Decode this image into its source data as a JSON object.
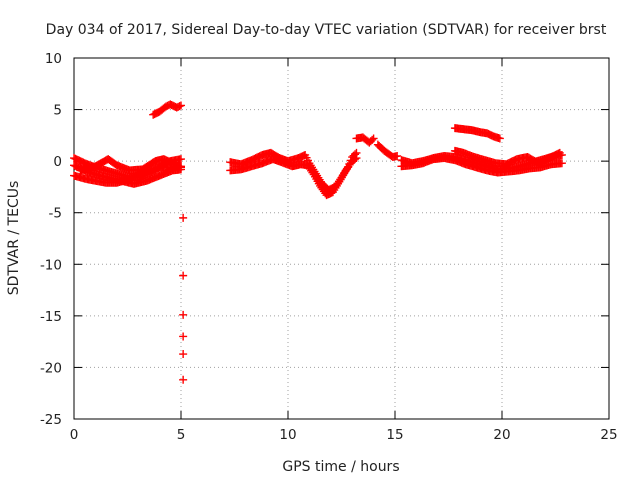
{
  "chart_data": {
    "type": "scatter",
    "title": "Day 034 of 2017, Sidereal Day-to-day VTEC variation (SDTVAR) for receiver brst",
    "xlabel": "GPS time / hours",
    "ylabel": "SDTVAR / TECUs",
    "xlim": [
      0,
      25
    ],
    "ylim": [
      -25,
      10
    ],
    "xticks": [
      "0",
      "5",
      "10",
      "15",
      "20",
      "25"
    ],
    "yticks": [
      "10",
      "5",
      "0",
      "-5",
      "-10",
      "-15",
      "-20",
      "-25"
    ],
    "grid": true,
    "marker": "+",
    "color": "#ff0000",
    "series": [
      {
        "name": "SDTVAR",
        "segments": [
          [
            [
              0.0,
              0.3
            ],
            [
              0.5,
              -0.2
            ],
            [
              1.0,
              -0.6
            ],
            [
              1.5,
              -0.9
            ],
            [
              2.0,
              -1.2
            ],
            [
              2.5,
              -1.5
            ],
            [
              3.0,
              -1.6
            ],
            [
              3.5,
              -1.2
            ],
            [
              4.0,
              -0.6
            ],
            [
              4.5,
              0.0
            ],
            [
              5.0,
              0.2
            ]
          ],
          [
            [
              0.0,
              -1.4
            ],
            [
              0.5,
              -1.7
            ],
            [
              1.0,
              -1.9
            ],
            [
              1.5,
              -2.1
            ],
            [
              2.0,
              -2.1
            ],
            [
              2.5,
              -1.8
            ],
            [
              3.0,
              -1.3
            ],
            [
              3.5,
              -0.9
            ],
            [
              4.0,
              -0.6
            ],
            [
              4.5,
              -0.6
            ],
            [
              5.0,
              -0.5
            ]
          ],
          [
            [
              0.3,
              -0.9
            ],
            [
              1.0,
              -0.5
            ],
            [
              1.6,
              0.2
            ],
            [
              2.0,
              -0.4
            ],
            [
              2.6,
              -0.9
            ],
            [
              3.2,
              -0.8
            ],
            [
              3.8,
              0.0
            ],
            [
              4.2,
              0.2
            ],
            [
              4.8,
              -0.4
            ],
            [
              5.0,
              -0.6
            ]
          ],
          [
            [
              0.0,
              -0.4
            ],
            [
              0.6,
              -1.0
            ],
            [
              1.2,
              -1.4
            ],
            [
              2.0,
              -1.8
            ],
            [
              2.8,
              -2.2
            ],
            [
              3.4,
              -1.9
            ],
            [
              4.0,
              -1.4
            ],
            [
              4.6,
              -0.9
            ],
            [
              5.0,
              -0.8
            ]
          ],
          [
            [
              3.7,
              4.5
            ],
            [
              4.0,
              4.8
            ],
            [
              4.3,
              5.3
            ],
            [
              4.5,
              5.5
            ],
            [
              4.8,
              5.2
            ],
            [
              5.0,
              5.4
            ]
          ],
          [
            [
              7.3,
              -0.1
            ],
            [
              7.8,
              -0.3
            ],
            [
              8.3,
              0.1
            ],
            [
              8.8,
              0.6
            ],
            [
              9.2,
              0.8
            ],
            [
              9.6,
              0.3
            ],
            [
              10.0,
              0.0
            ],
            [
              10.5,
              0.3
            ],
            [
              10.8,
              0.6
            ],
            [
              11.0,
              -0.2
            ],
            [
              11.3,
              -1.2
            ],
            [
              11.6,
              -2.2
            ],
            [
              11.9,
              -2.8
            ],
            [
              12.2,
              -2.5
            ],
            [
              12.5,
              -1.6
            ],
            [
              12.8,
              -0.6
            ],
            [
              13.0,
              0.4
            ],
            [
              13.2,
              0.8
            ]
          ],
          [
            [
              7.3,
              -0.9
            ],
            [
              7.8,
              -0.8
            ],
            [
              8.3,
              -0.5
            ],
            [
              8.8,
              -0.2
            ],
            [
              9.3,
              0.2
            ],
            [
              9.7,
              -0.1
            ],
            [
              10.2,
              -0.5
            ],
            [
              10.6,
              -0.3
            ],
            [
              10.9,
              -0.4
            ],
            [
              11.2,
              -1.3
            ],
            [
              11.5,
              -2.4
            ],
            [
              11.8,
              -3.3
            ],
            [
              12.1,
              -3.0
            ],
            [
              12.4,
              -2.0
            ],
            [
              12.7,
              -0.9
            ],
            [
              13.0,
              0.0
            ],
            [
              13.2,
              0.3
            ]
          ],
          [
            [
              13.2,
              2.2
            ],
            [
              13.5,
              2.3
            ],
            [
              13.8,
              1.8
            ],
            [
              14.0,
              2.2
            ]
          ],
          [
            [
              14.2,
              1.6
            ],
            [
              14.5,
              1.0
            ],
            [
              14.9,
              0.4
            ],
            [
              15.1,
              0.5
            ]
          ],
          [
            [
              15.3,
              0.1
            ],
            [
              15.8,
              -0.2
            ],
            [
              16.3,
              0.0
            ],
            [
              16.8,
              0.3
            ],
            [
              17.3,
              0.5
            ],
            [
              17.8,
              0.4
            ],
            [
              18.3,
              0.1
            ],
            [
              18.8,
              -0.2
            ],
            [
              19.3,
              -0.5
            ],
            [
              19.8,
              -0.8
            ],
            [
              20.3,
              -0.7
            ],
            [
              20.8,
              -0.5
            ],
            [
              21.3,
              -0.2
            ],
            [
              21.8,
              0.1
            ],
            [
              22.3,
              0.4
            ],
            [
              22.8,
              0.6
            ]
          ],
          [
            [
              15.3,
              -0.5
            ],
            [
              15.8,
              -0.4
            ],
            [
              16.3,
              -0.2
            ],
            [
              16.8,
              0.2
            ],
            [
              17.3,
              0.3
            ],
            [
              17.8,
              0.1
            ],
            [
              18.3,
              -0.3
            ],
            [
              18.8,
              -0.6
            ],
            [
              19.3,
              -0.9
            ],
            [
              19.8,
              -1.1
            ],
            [
              20.3,
              -1.0
            ],
            [
              20.8,
              -0.9
            ],
            [
              21.3,
              -0.7
            ],
            [
              21.8,
              -0.6
            ],
            [
              22.3,
              -0.3
            ],
            [
              22.8,
              -0.2
            ]
          ],
          [
            [
              17.8,
              1.0
            ],
            [
              18.2,
              0.8
            ],
            [
              18.7,
              0.4
            ],
            [
              19.2,
              0.1
            ],
            [
              19.7,
              -0.2
            ],
            [
              20.2,
              -0.3
            ],
            [
              20.7,
              0.2
            ],
            [
              21.2,
              0.4
            ],
            [
              21.7,
              -0.2
            ],
            [
              22.2,
              0.3
            ],
            [
              22.7,
              0.8
            ]
          ],
          [
            [
              17.8,
              3.2
            ],
            [
              18.2,
              3.1
            ],
            [
              18.6,
              3.0
            ],
            [
              19.0,
              2.8
            ],
            [
              19.3,
              2.7
            ],
            [
              19.6,
              2.4
            ],
            [
              19.9,
              2.2
            ]
          ]
        ],
        "outliers": [
          [
            5.1,
            -5.5
          ],
          [
            5.1,
            -11.1
          ],
          [
            5.1,
            -14.9
          ],
          [
            5.1,
            -17.0
          ],
          [
            5.1,
            -18.7
          ],
          [
            5.1,
            -21.2
          ]
        ]
      }
    ]
  }
}
